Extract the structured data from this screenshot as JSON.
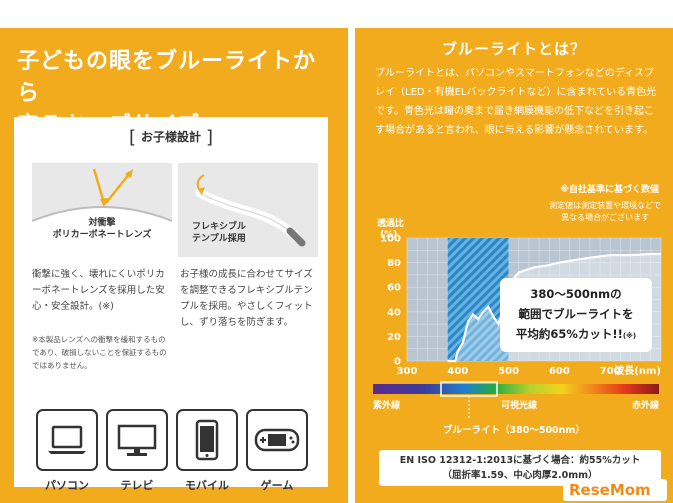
{
  "left": {
    "title": "子どもの眼をブルーライトから\n守るキッズサイズ",
    "card_heading": "お子様設計",
    "bracket_open": "[",
    "bracket_close": "]",
    "feature1": {
      "caption": "対衝撃\nポリカーボネートレンズ",
      "text": "衝撃に強く、壊れにくいポリカーボネートレンズを採用した安心・安全設計。(※)",
      "note": "※本製品レンズへの衝撃を緩和するものであり、破損しないことを保証するものではありません。"
    },
    "feature2": {
      "caption": "フレキシブル\nテンプル採用",
      "text": "お子様の成長に合わせてサイズを調整できるフレキシブルテンプルを採用。やさしくフィットし、ずり落ちを防ぎます。"
    },
    "devices": [
      {
        "icon": "laptop-icon",
        "label": "パソコン"
      },
      {
        "icon": "tv-icon",
        "label": "テレビ"
      },
      {
        "icon": "mobile-icon",
        "label": "モバイル"
      },
      {
        "icon": "game-icon",
        "label": "ゲーム"
      }
    ]
  },
  "right": {
    "title": "ブルーライトとは？",
    "body": "ブルーライトとは、パソコンやスマートフォンなどのディスプレイ（LED・有機ELバックライトなど）に含まれている青色光です。青色光は瞳の奥まで届き網膜機能の低下などを引き起こす場合があると言われ、眼に与える影響が懸念されています。",
    "note_standard": "※自社基準に基づく数値",
    "note_measure": "測定値は測定装置や環境などで\n異なる場合がございます",
    "callout_line1": "380〜500nmの",
    "callout_line2": "範囲でブルーライトを",
    "callout_line3": "平均約65%カット!!",
    "callout_mark": "(※)",
    "spectrum_left": "紫外線",
    "spectrum_mid": "可視光線",
    "spectrum_right": "赤外線",
    "blue_range_label": "ブルーライト（380〜500nm）",
    "iso_text": "EN ISO 12312-1:2013に基づく場合：約55%カット\n（屈折率1.59、中心肉厚2.0mm）",
    "logo_text": "ReseMom"
  },
  "colors": {
    "panel": "#f2ab1c",
    "chart_bg": "#b9c6d2",
    "blue_band": "#3a8fc6",
    "curve": "#ffffff"
  },
  "chart_data": {
    "type": "line",
    "ylabel": "透過比\n(%)",
    "xlabel": "波長(nm)",
    "xlim": [
      300,
      800
    ],
    "ylim": [
      0,
      100
    ],
    "xticks": [
      300,
      400,
      500,
      600,
      700
    ],
    "yticks": [
      0,
      20,
      40,
      60,
      80,
      100
    ],
    "highlight_range": [
      380,
      500
    ],
    "x": [
      380,
      395,
      400,
      410,
      420,
      430,
      440,
      450,
      460,
      470,
      480,
      490,
      500,
      520,
      550,
      580,
      600,
      630,
      660,
      700,
      740,
      780,
      800
    ],
    "y": [
      0,
      0,
      8,
      15,
      32,
      38,
      34,
      40,
      44,
      36,
      30,
      42,
      62,
      72,
      76,
      78,
      80,
      82,
      84,
      86,
      86,
      87,
      87
    ]
  }
}
